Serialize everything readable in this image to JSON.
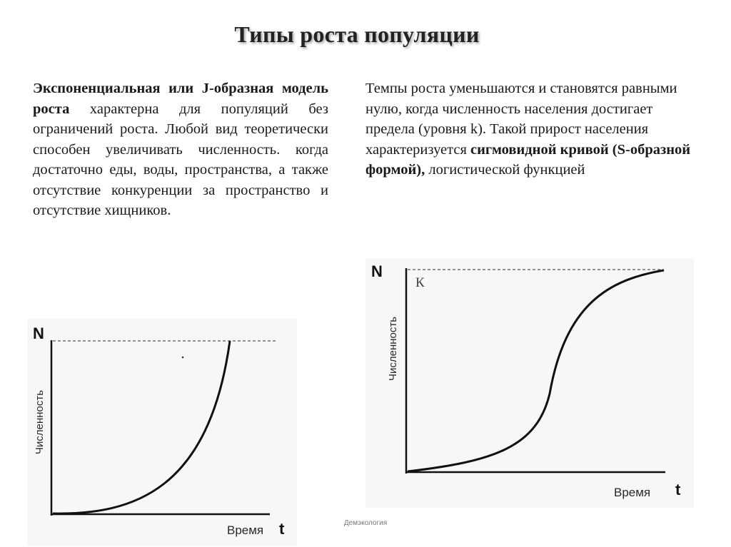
{
  "slide": {
    "title": "Типы роста популяции",
    "footer": "Демэкология"
  },
  "left_text": {
    "bold_intro": "Экспоненциальная или J-образная модель роста",
    "body": " характерна для популяций без ограничений роста. Любой вид теоретически способен увеличивать численность. когда достаточно еды, воды, пространства, а также отсутствие конкуренции за пространство и отсутствие хищников."
  },
  "right_text": {
    "part1": "Темпы роста уменьшаются и становятся равными нулю, когда численность населения достигает предела (уровня k). Такой прирост населения характеризуется ",
    "bold": "сигмовидной кривой (S-образной формой),",
    "part2": " логистической функцией"
  },
  "chart_left": {
    "type": "line",
    "curve": "J-shaped (exponential)",
    "y_axis_symbol": "N",
    "y_axis_label": "Численность",
    "x_axis_symbol": "t",
    "x_axis_label": "Время"
  },
  "chart_right": {
    "type": "line",
    "curve": "S-shaped (logistic)",
    "y_axis_symbol": "N",
    "y_axis_label": "Численность",
    "x_axis_symbol": "t",
    "x_axis_label": "Время",
    "asymptote_label": "К"
  },
  "colors": {
    "background": "#ffffff",
    "chart_background": "#f7f7f7",
    "line": "#111111",
    "dashed": "#555555"
  }
}
